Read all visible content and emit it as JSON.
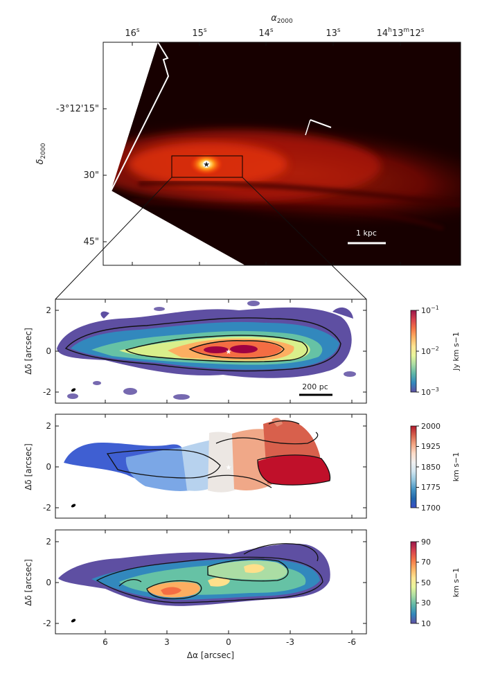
{
  "top_panel": {
    "title": "α2000",
    "title_main": "α",
    "title_sub": "2000",
    "ra_ticks": [
      "16s",
      "15s",
      "14s",
      "13s",
      "14h13m12s"
    ],
    "ra_tick_labels": [
      {
        "main": "16",
        "sup": "s"
      },
      {
        "main": "15",
        "sup": "s"
      },
      {
        "main": "14",
        "sup": "s"
      },
      {
        "main": "13",
        "sup": "s"
      },
      {
        "main": "14",
        "sup": "h",
        "main2": "13",
        "sup2": "m",
        "main3": "12",
        "sup3": "s"
      }
    ],
    "dec_label": "δ2000",
    "dec_label_main": "δ",
    "dec_label_sub": "2000",
    "dec_ticks": [
      "-3°12'15\"",
      "30\"",
      "45\""
    ],
    "scalebar_label": "1 kpc"
  },
  "panels": [
    {
      "name": "intensity",
      "ylabel": "Δδ [arcsec]",
      "yticks": [
        "2",
        "0",
        "-2"
      ],
      "scalebar_label": "200 pc",
      "colorbar": {
        "label": "Jy km s−1",
        "ticks": [
          {
            "base": "10",
            "exp": "−1"
          },
          {
            "base": "10",
            "exp": "−2"
          },
          {
            "base": "10",
            "exp": "−3"
          }
        ],
        "colors": [
          "#99174a",
          "#d6404e",
          "#f57547",
          "#fdb465",
          "#fee593",
          "#e8f69c",
          "#a7dba4",
          "#5db6a8",
          "#3288bd",
          "#5e4fa2"
        ]
      }
    },
    {
      "name": "velocity",
      "ylabel": "Δδ [arcsec]",
      "yticks": [
        "2",
        "0",
        "-2"
      ],
      "colorbar": {
        "label": "km s−1",
        "ticks": [
          "2000",
          "1925",
          "1850",
          "1775",
          "1700"
        ],
        "colors": [
          "#b2182b",
          "#d6604d",
          "#f4a582",
          "#fddbc7",
          "#f0f0f0",
          "#d1e5f0",
          "#92c5de",
          "#4393c3",
          "#2166ac",
          "#3a4fc8"
        ]
      }
    },
    {
      "name": "dispersion",
      "ylabel": "Δδ [arcsec]",
      "yticks": [
        "2",
        "0",
        "-2"
      ],
      "xticks": [
        "6",
        "3",
        "0",
        "-3",
        "-6"
      ],
      "xlabel": "Δα [arcsec]",
      "colorbar": {
        "label": "km s−1",
        "ticks": [
          "90",
          "70",
          "50",
          "30",
          "10"
        ],
        "colors": [
          "#99174a",
          "#d6404e",
          "#f57547",
          "#fdb465",
          "#fee593",
          "#e8f69c",
          "#a7dba4",
          "#5db6a8",
          "#3288bd",
          "#5e4fa2"
        ]
      }
    }
  ]
}
